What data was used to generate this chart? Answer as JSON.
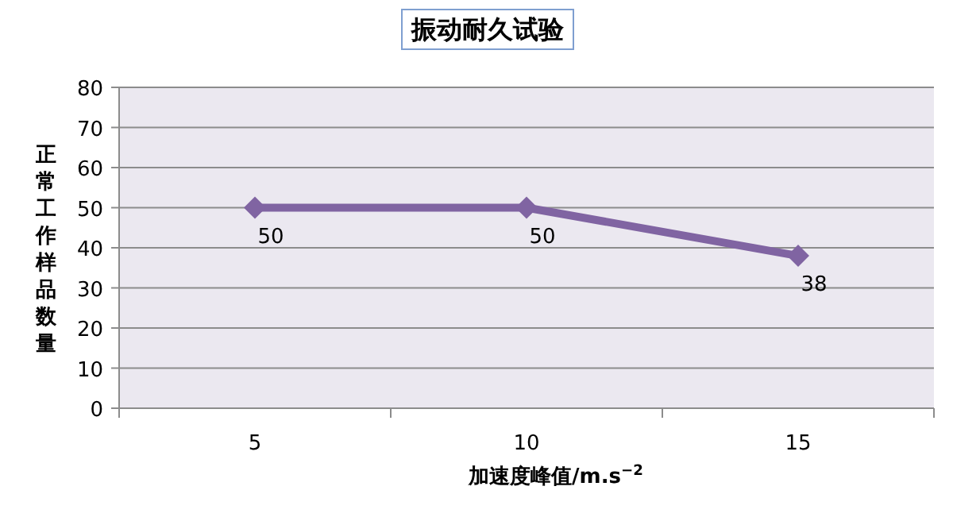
{
  "chart_data": {
    "type": "line",
    "title": "振动耐久试验",
    "xlabel": "加速度峰值/m.s$^{−2}$",
    "ylabel": "正常工作样品数量",
    "categories": [
      "5",
      "10",
      "15"
    ],
    "series": [
      {
        "color": "#8064a2",
        "values": [
          50,
          50,
          38
        ]
      }
    ],
    "ylim": [
      0,
      80
    ],
    "yticks": [
      0,
      10,
      20,
      30,
      40,
      50,
      60,
      70,
      80
    ],
    "grid": "y",
    "marker": "diamond",
    "data_labels": true
  }
}
